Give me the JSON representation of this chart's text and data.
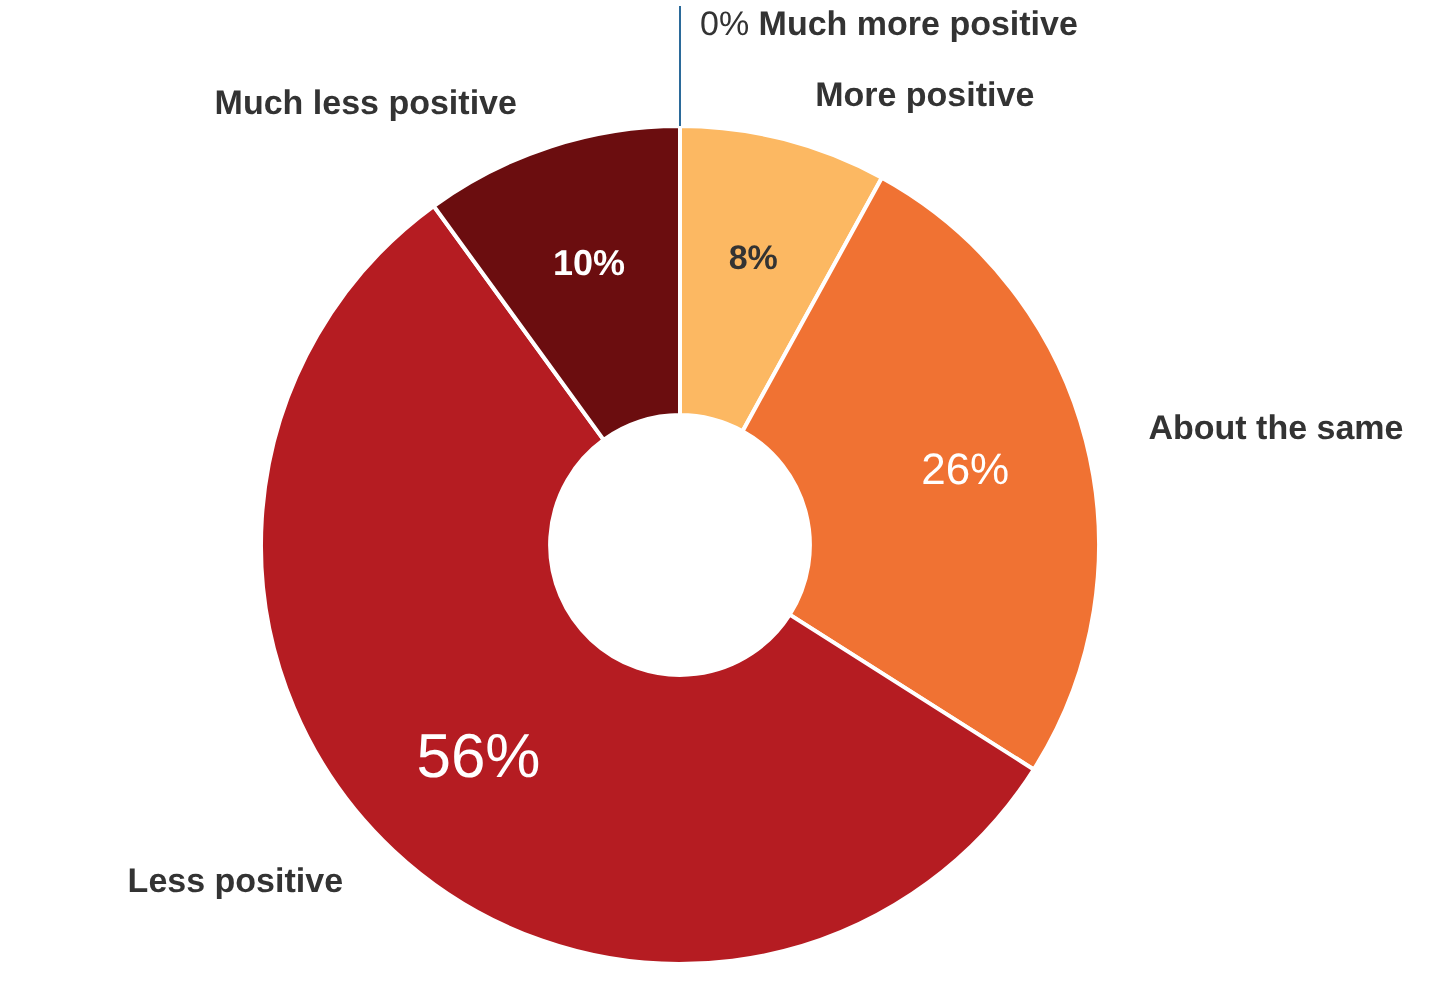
{
  "chart_data": {
    "type": "donut",
    "categories": [
      "Much more positive",
      "More positive",
      "About the same",
      "Less positive",
      "Much less positive"
    ],
    "values": [
      0,
      8,
      26,
      56,
      10
    ],
    "colors": [
      "#2b6a9a",
      "#fcb862",
      "#f07233",
      "#b51c22",
      "#6b0d0f"
    ],
    "value_labels": [
      "0%",
      "8%",
      "26%",
      "56%",
      "10%"
    ],
    "legend": false
  }
}
